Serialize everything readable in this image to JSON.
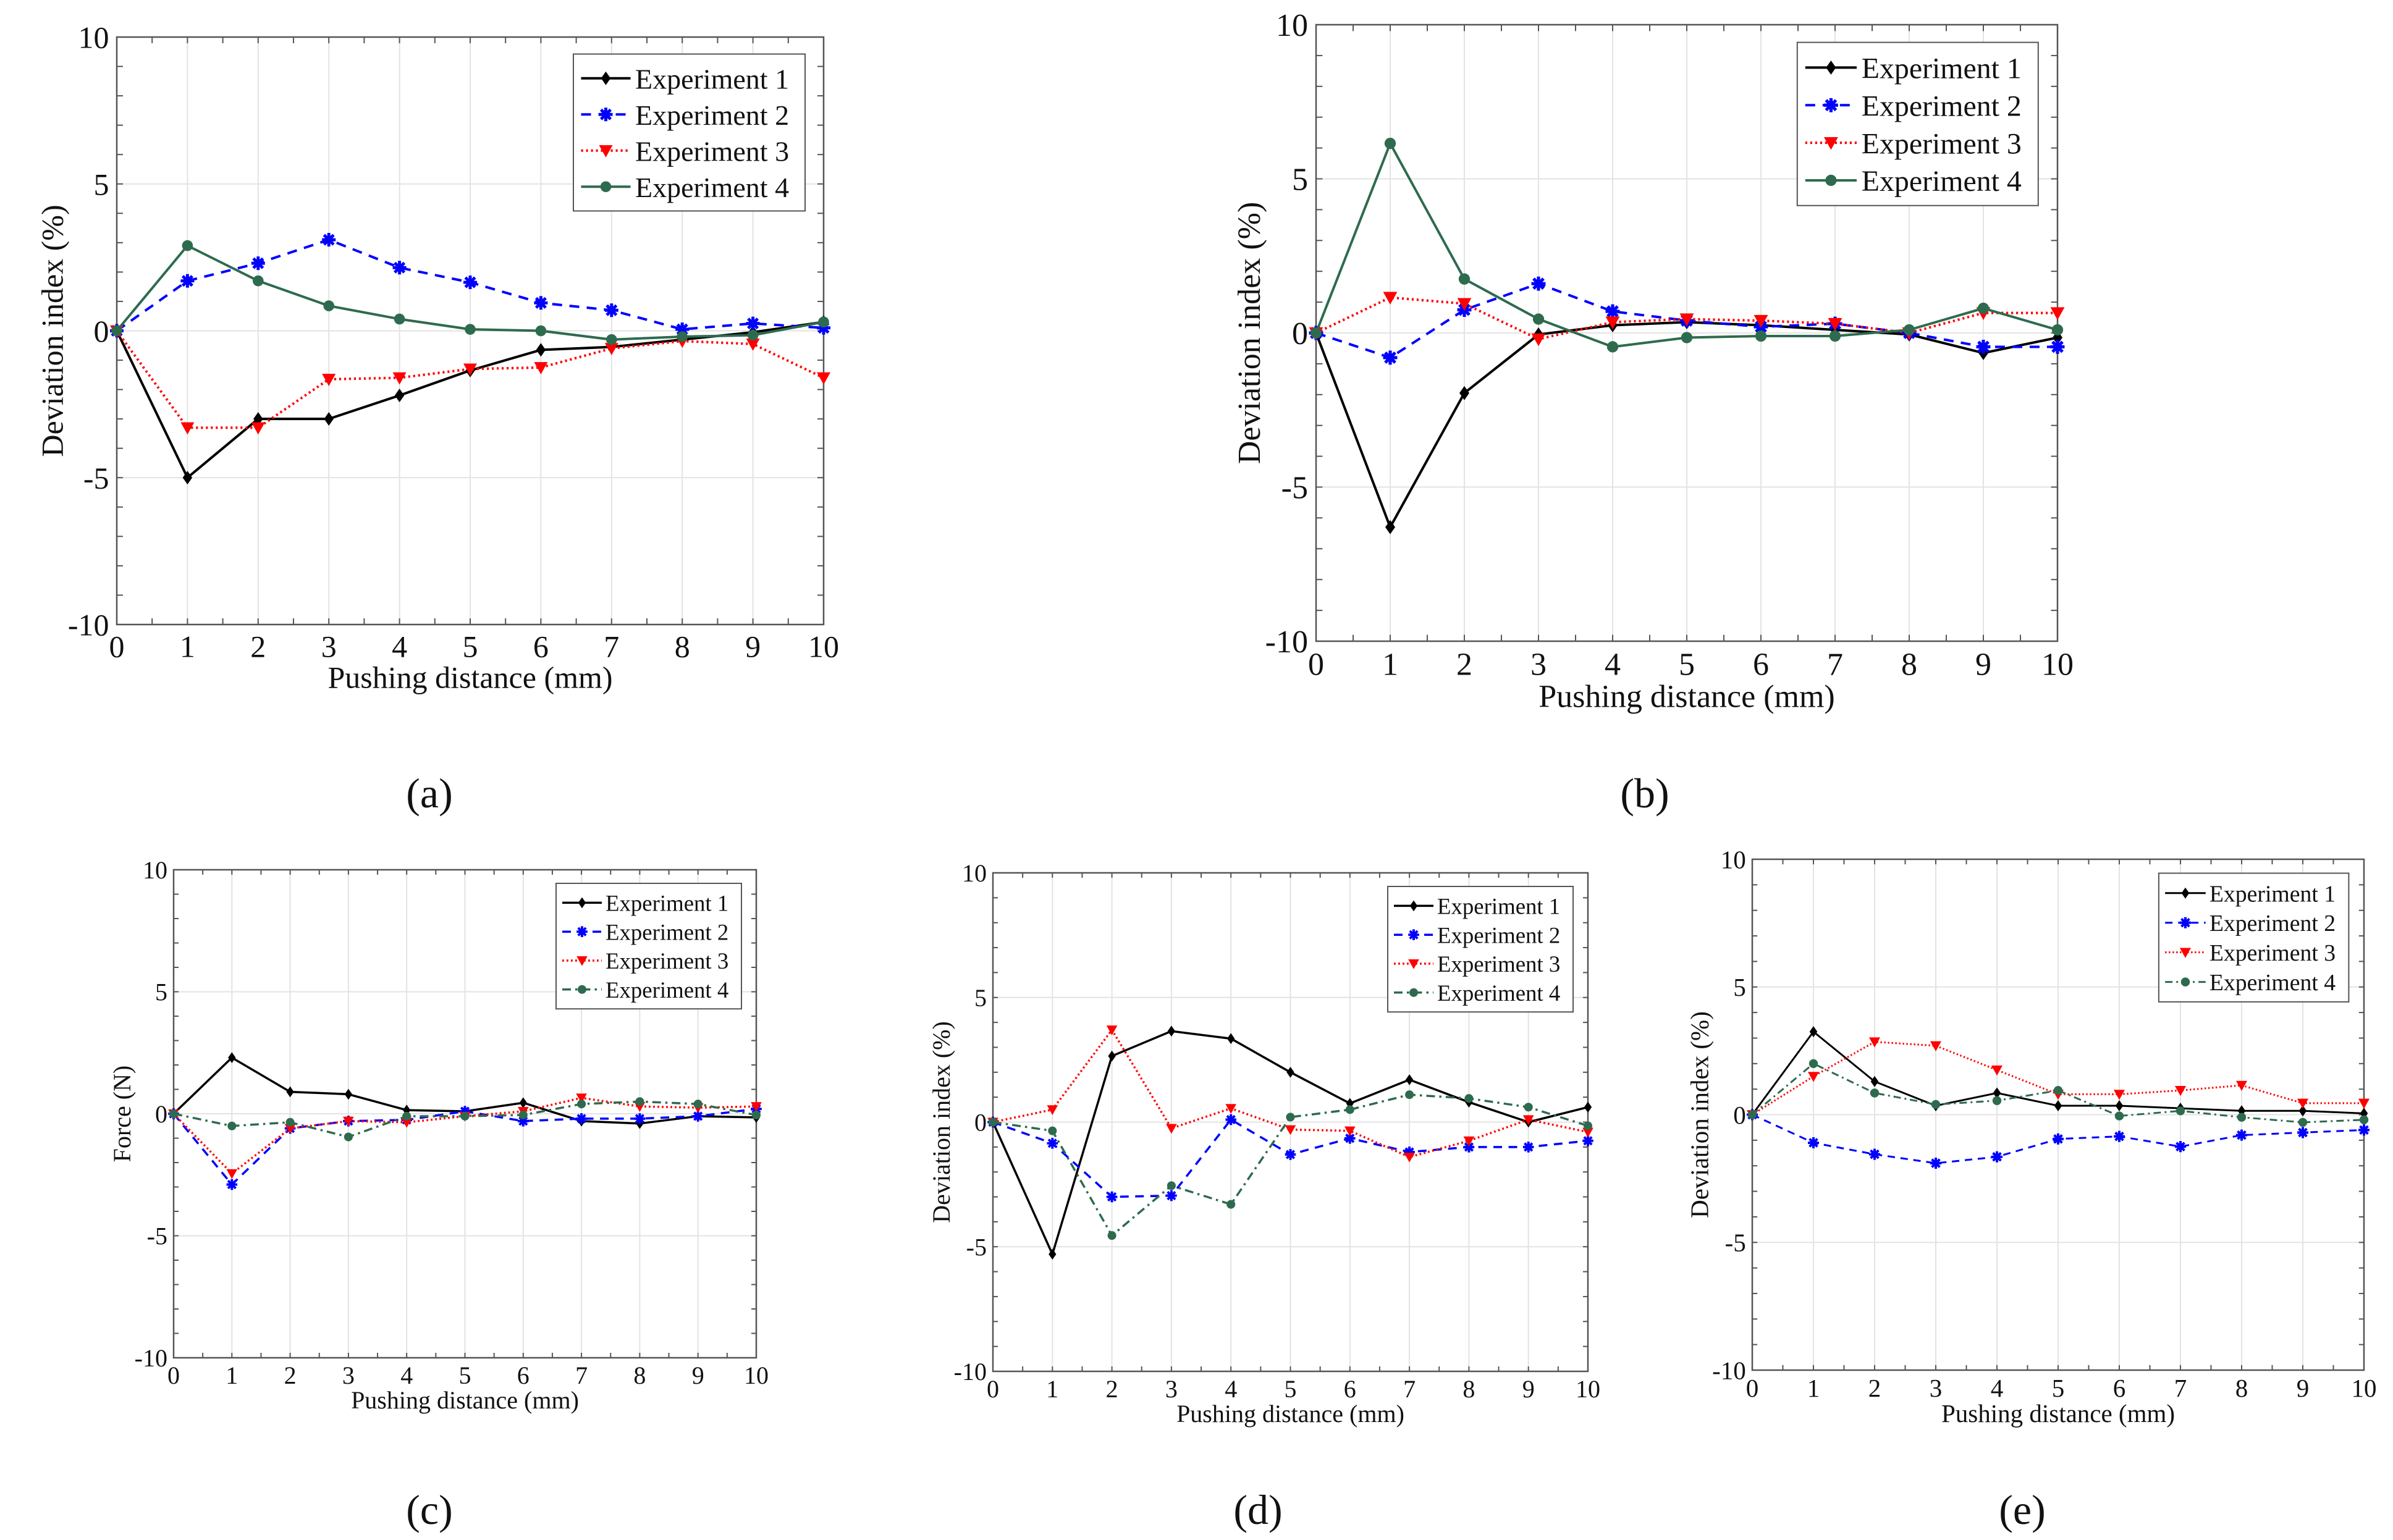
{
  "chart_data": [
    {
      "id": "a",
      "panel_label": "(a)",
      "type": "line",
      "xlabel": "Pushing distance (mm)",
      "ylabel": "Deviation index (%)",
      "xlim": [
        0,
        10
      ],
      "ylim": [
        -10,
        10
      ],
      "xticks": [
        0,
        1,
        2,
        3,
        4,
        5,
        6,
        7,
        8,
        9,
        10
      ],
      "yticks": [
        -10,
        -5,
        0,
        5,
        10
      ],
      "grid": true,
      "legend": "top-right",
      "exp4_style": "solid",
      "x": [
        0,
        1,
        2,
        3,
        4,
        5,
        6,
        7,
        8,
        9,
        10
      ],
      "series": [
        {
          "name": "Experiment 1",
          "values": [
            0,
            -5,
            -3,
            -3,
            -2.2,
            -1.35,
            -0.65,
            -0.55,
            -0.3,
            -0.05,
            0.3
          ]
        },
        {
          "name": "Experiment 2",
          "values": [
            0,
            1.7,
            2.3,
            3.1,
            2.15,
            1.65,
            0.95,
            0.7,
            0.05,
            0.25,
            0.1
          ]
        },
        {
          "name": "Experiment 3",
          "values": [
            0,
            -3.3,
            -3.3,
            -1.65,
            -1.6,
            -1.3,
            -1.25,
            -0.6,
            -0.35,
            -0.45,
            -1.6
          ]
        },
        {
          "name": "Experiment 4",
          "values": [
            0,
            2.9,
            1.7,
            0.85,
            0.4,
            0.05,
            0,
            -0.3,
            -0.2,
            -0.15,
            0.3
          ]
        }
      ]
    },
    {
      "id": "b",
      "panel_label": "(b)",
      "type": "line",
      "xlabel": "Pushing distance (mm)",
      "ylabel": "Deviation index (%)",
      "xlim": [
        0,
        10
      ],
      "ylim": [
        -10,
        10
      ],
      "xticks": [
        0,
        1,
        2,
        3,
        4,
        5,
        6,
        7,
        8,
        9,
        10
      ],
      "yticks": [
        -10,
        -5,
        0,
        5,
        10
      ],
      "grid": true,
      "legend": "top-right",
      "exp4_style": "solid",
      "x": [
        0,
        1,
        2,
        3,
        4,
        5,
        6,
        7,
        8,
        9,
        10
      ],
      "series": [
        {
          "name": "Experiment 1",
          "values": [
            0,
            -6.3,
            -1.95,
            -0.05,
            0.25,
            0.35,
            0.25,
            0.1,
            -0.05,
            -0.65,
            -0.15
          ]
        },
        {
          "name": "Experiment 2",
          "values": [
            0,
            -0.8,
            0.75,
            1.6,
            0.7,
            0.4,
            0.2,
            0.3,
            0,
            -0.45,
            -0.45
          ]
        },
        {
          "name": "Experiment 3",
          "values": [
            0,
            1.15,
            0.95,
            -0.2,
            0.35,
            0.45,
            0.4,
            0.3,
            0,
            0.65,
            0.65
          ]
        },
        {
          "name": "Experiment 4",
          "values": [
            0,
            6.15,
            1.75,
            0.45,
            -0.45,
            -0.15,
            -0.1,
            -0.1,
            0.1,
            0.8,
            0.1
          ]
        }
      ]
    },
    {
      "id": "c",
      "panel_label": "(c)",
      "type": "line",
      "xlabel": "Pushing distance (mm)",
      "ylabel": "Force (N)",
      "xlim": [
        0,
        10
      ],
      "ylim": [
        -10,
        10
      ],
      "xticks": [
        0,
        1,
        2,
        3,
        4,
        5,
        6,
        7,
        8,
        9,
        10
      ],
      "yticks": [
        -10,
        -5,
        0,
        5,
        10
      ],
      "grid": true,
      "legend": "top-right",
      "exp4_style": "dashdot",
      "x": [
        0,
        1,
        2,
        3,
        4,
        5,
        6,
        7,
        8,
        9,
        10
      ],
      "series": [
        {
          "name": "Experiment 1",
          "values": [
            0,
            2.3,
            0.9,
            0.8,
            0.15,
            0.1,
            0.45,
            -0.3,
            -0.4,
            -0.1,
            -0.15
          ]
        },
        {
          "name": "Experiment 2",
          "values": [
            0,
            -2.9,
            -0.6,
            -0.3,
            -0.25,
            0.1,
            -0.3,
            -0.2,
            -0.2,
            -0.1,
            0.2
          ]
        },
        {
          "name": "Experiment 3",
          "values": [
            0,
            -2.45,
            -0.6,
            -0.3,
            -0.35,
            -0.1,
            0.1,
            0.65,
            0.3,
            0.25,
            0.3
          ]
        },
        {
          "name": "Experiment 4",
          "values": [
            0,
            -0.5,
            -0.35,
            -0.95,
            -0.1,
            -0.1,
            -0.05,
            0.4,
            0.5,
            0.4,
            -0.05
          ]
        }
      ]
    },
    {
      "id": "d",
      "panel_label": "(d)",
      "type": "line",
      "xlabel": "Pushing distance (mm)",
      "ylabel": "Deviation index (%)",
      "xlim": [
        0,
        10
      ],
      "ylim": [
        -10,
        10
      ],
      "xticks": [
        0,
        1,
        2,
        3,
        4,
        5,
        6,
        7,
        8,
        9,
        10
      ],
      "yticks": [
        -10,
        -5,
        0,
        5,
        10
      ],
      "grid": true,
      "legend": "top-right",
      "exp4_style": "dashdot",
      "x": [
        0,
        1,
        2,
        3,
        4,
        5,
        6,
        7,
        8,
        9,
        10
      ],
      "series": [
        {
          "name": "Experiment 1",
          "values": [
            0,
            -5.3,
            2.65,
            3.65,
            3.35,
            2.0,
            0.75,
            1.7,
            0.8,
            0,
            0.6
          ]
        },
        {
          "name": "Experiment 2",
          "values": [
            0,
            -0.85,
            -3.0,
            -2.95,
            0.1,
            -1.3,
            -0.65,
            -1.2,
            -1.0,
            -1.0,
            -0.75
          ]
        },
        {
          "name": "Experiment 3",
          "values": [
            0,
            0.5,
            3.7,
            -0.25,
            0.55,
            -0.3,
            -0.35,
            -1.4,
            -0.75,
            0.1,
            -0.4
          ]
        },
        {
          "name": "Experiment 4",
          "values": [
            0,
            -0.35,
            -4.55,
            -2.55,
            -3.3,
            0.2,
            0.5,
            1.1,
            0.95,
            0.6,
            -0.15
          ]
        }
      ]
    },
    {
      "id": "e",
      "panel_label": "(e)",
      "type": "line",
      "xlabel": "Pushing distance (mm)",
      "ylabel": "Deviation index (%)",
      "xlim": [
        0,
        10
      ],
      "ylim": [
        -10,
        10
      ],
      "xticks": [
        0,
        1,
        2,
        3,
        4,
        5,
        6,
        7,
        8,
        9,
        10
      ],
      "yticks": [
        -10,
        -5,
        0,
        5,
        10
      ],
      "grid": true,
      "legend": "top-right",
      "exp4_style": "dashdot",
      "x": [
        0,
        1,
        2,
        3,
        4,
        5,
        6,
        7,
        8,
        9,
        10
      ],
      "series": [
        {
          "name": "Experiment 1",
          "values": [
            0,
            3.25,
            1.3,
            0.35,
            0.85,
            0.35,
            0.35,
            0.25,
            0.15,
            0.15,
            0.05
          ]
        },
        {
          "name": "Experiment 2",
          "values": [
            0,
            -1.1,
            -1.55,
            -1.9,
            -1.65,
            -0.95,
            -0.85,
            -1.25,
            -0.8,
            -0.7,
            -0.6
          ]
        },
        {
          "name": "Experiment 3",
          "values": [
            0,
            1.5,
            2.85,
            2.7,
            1.75,
            0.8,
            0.8,
            0.95,
            1.15,
            0.45,
            0.45
          ]
        },
        {
          "name": "Experiment 4",
          "values": [
            0,
            2.0,
            0.85,
            0.4,
            0.55,
            0.95,
            -0.05,
            0.15,
            -0.1,
            -0.3,
            -0.2
          ]
        }
      ]
    }
  ],
  "colors": {
    "exp1": "#000000",
    "exp2": "#0000ff",
    "exp3": "#ff0000",
    "exp4": "#2e6b4e",
    "grid": "#e3e3e3",
    "axis": "#555555"
  }
}
